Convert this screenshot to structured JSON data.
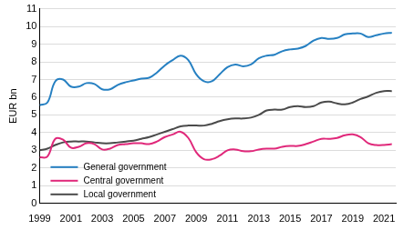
{
  "chart_data": {
    "type": "line",
    "y_label": "EUR bn",
    "x": [
      1999,
      1999.5,
      2000,
      2000.5,
      2001,
      2001.5,
      2002,
      2002.5,
      2003,
      2003.5,
      2004,
      2004.5,
      2005,
      2005.5,
      2006,
      2006.5,
      2007,
      2007.5,
      2008,
      2008.5,
      2009,
      2009.5,
      2010,
      2010.5,
      2011,
      2011.5,
      2012,
      2012.5,
      2013,
      2013.5,
      2014,
      2014.5,
      2015,
      2015.5,
      2016,
      2016.5,
      2017,
      2017.5,
      2018,
      2018.5,
      2019,
      2019.5,
      2020,
      2020.5,
      2021,
      2021.5
    ],
    "series": [
      {
        "name": "General government",
        "color": "#2680c2",
        "values": [
          5.55,
          5.7,
          6.9,
          7.0,
          6.6,
          6.6,
          6.8,
          6.75,
          6.45,
          6.45,
          6.7,
          6.85,
          6.95,
          7.05,
          7.1,
          7.4,
          7.8,
          8.1,
          8.35,
          8.1,
          7.3,
          6.9,
          6.9,
          7.3,
          7.7,
          7.85,
          7.75,
          7.85,
          8.2,
          8.35,
          8.4,
          8.6,
          8.7,
          8.75,
          8.9,
          9.2,
          9.35,
          9.3,
          9.35,
          9.55,
          9.6,
          9.6,
          9.4,
          9.5,
          9.6,
          9.65
        ]
      },
      {
        "name": "Central government",
        "color": "#e0287a",
        "values": [
          2.6,
          2.65,
          3.65,
          3.6,
          3.15,
          3.2,
          3.4,
          3.35,
          3.05,
          3.1,
          3.3,
          3.35,
          3.4,
          3.4,
          3.35,
          3.5,
          3.75,
          3.9,
          4.05,
          3.7,
          2.9,
          2.5,
          2.5,
          2.7,
          3.0,
          3.05,
          2.95,
          2.95,
          3.05,
          3.1,
          3.1,
          3.2,
          3.25,
          3.25,
          3.35,
          3.5,
          3.65,
          3.65,
          3.7,
          3.85,
          3.9,
          3.75,
          3.4,
          3.3,
          3.3,
          3.35
        ]
      },
      {
        "name": "Local government",
        "color": "#4a4a4a",
        "values": [
          3.0,
          3.1,
          3.3,
          3.45,
          3.5,
          3.5,
          3.5,
          3.45,
          3.4,
          3.4,
          3.45,
          3.5,
          3.55,
          3.65,
          3.75,
          3.9,
          4.05,
          4.2,
          4.35,
          4.4,
          4.4,
          4.4,
          4.5,
          4.65,
          4.75,
          4.8,
          4.8,
          4.85,
          5.0,
          5.25,
          5.3,
          5.3,
          5.45,
          5.5,
          5.45,
          5.5,
          5.7,
          5.75,
          5.65,
          5.6,
          5.7,
          5.9,
          6.05,
          6.25,
          6.35,
          6.35
        ]
      }
    ],
    "xlim": [
      1999,
      2021.75
    ],
    "xticks": [
      1999,
      2001,
      2003,
      2005,
      2007,
      2009,
      2011,
      2013,
      2015,
      2017,
      2019,
      2021
    ],
    "ylim": [
      0,
      11
    ],
    "yticks": [
      0,
      1,
      2,
      3,
      4,
      5,
      6,
      7,
      8,
      9,
      10,
      11
    ],
    "grid": true,
    "legend": "lower left"
  }
}
